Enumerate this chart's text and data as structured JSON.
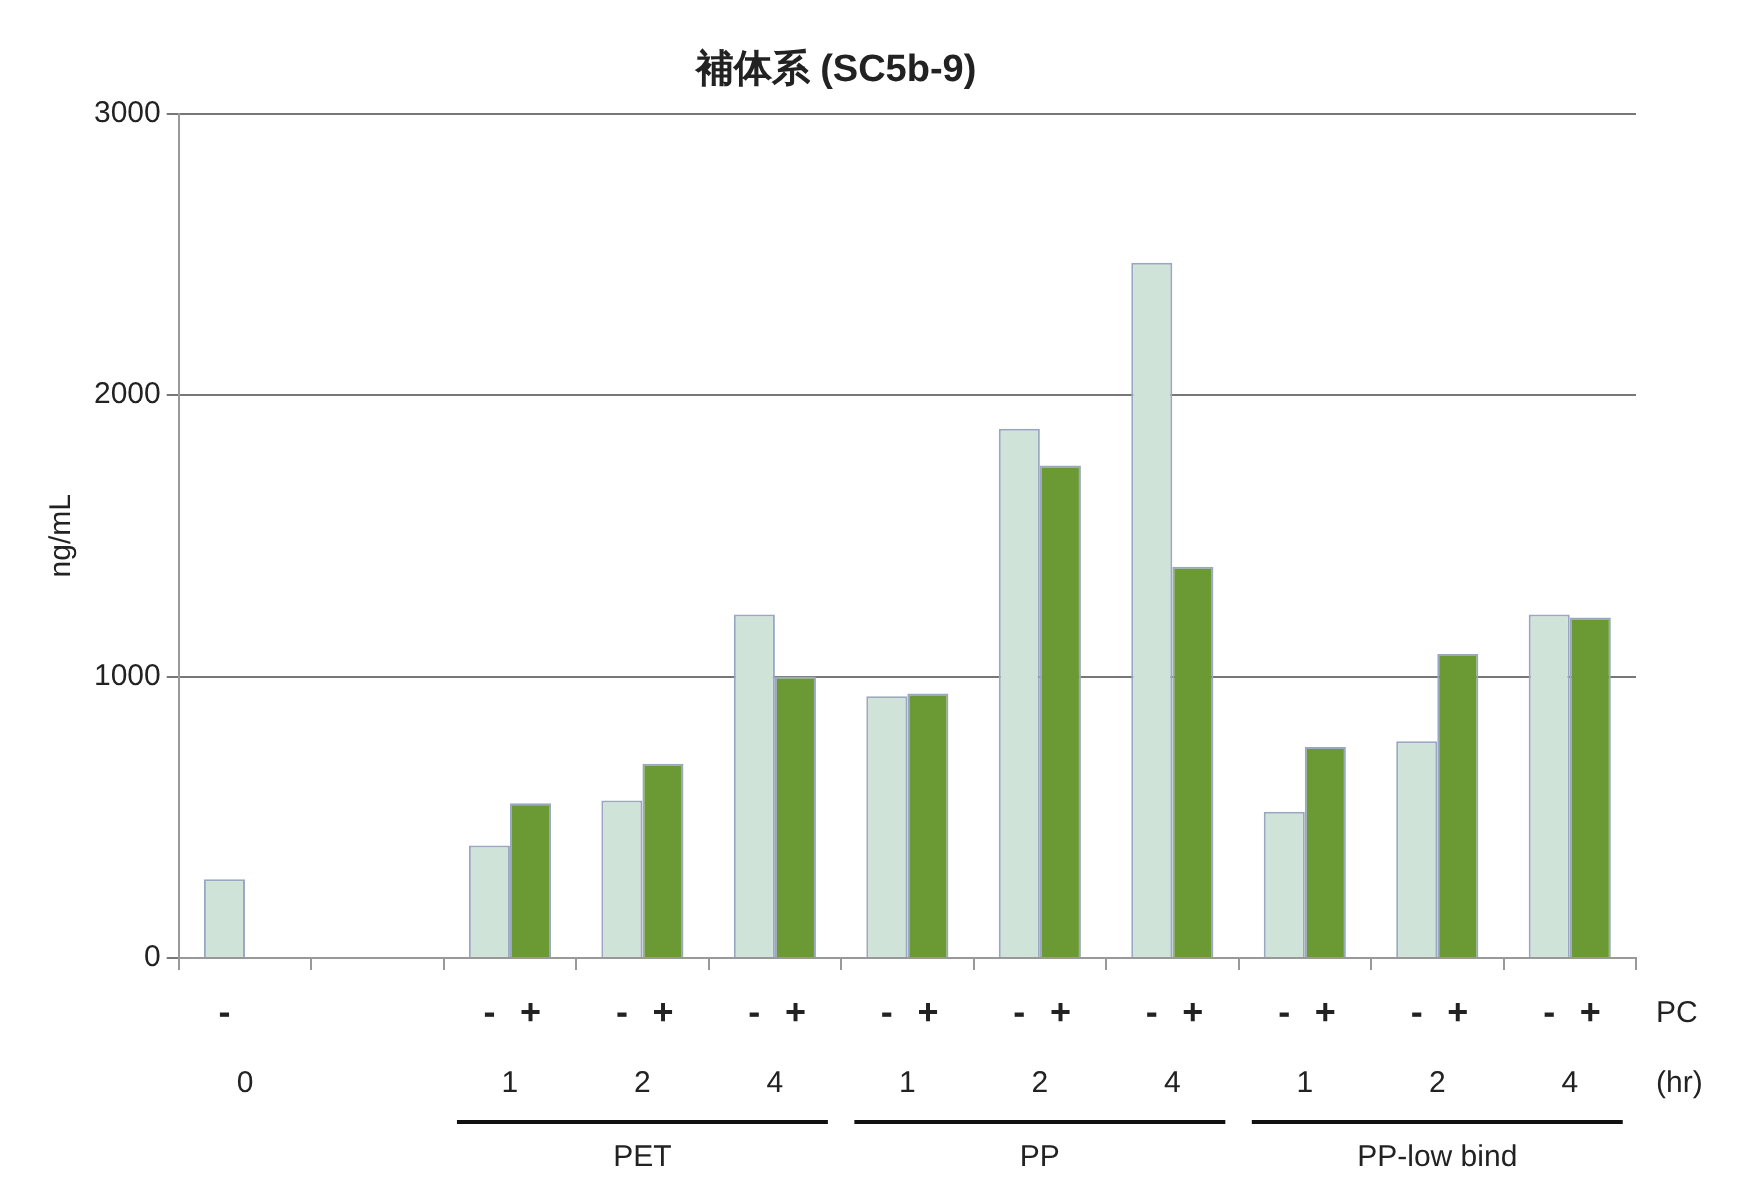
{
  "chart_data": {
    "type": "bar",
    "title": "補体系 (SC5b-9)",
    "ylabel": "ng/mL",
    "categories": [
      "0",
      null,
      "1",
      "2",
      "4",
      "1",
      "2",
      "4",
      "1",
      "2",
      "4"
    ],
    "series": [
      {
        "name": "-",
        "color": "#cfe3d8",
        "values": [
          280,
          null,
          400,
          560,
          1220,
          930,
          1880,
          2470,
          520,
          770,
          1220
        ]
      },
      {
        "name": "+",
        "color": "#6b9a34",
        "values": [
          null,
          null,
          550,
          690,
          1000,
          940,
          1750,
          1390,
          750,
          1080,
          1210
        ]
      }
    ],
    "ylim": [
      0,
      3000
    ],
    "yticks": [
      0,
      1000,
      2000,
      3000
    ],
    "grid": "y",
    "legend": false,
    "annotations": [
      "PC",
      "(hr)",
      "PET",
      "PP",
      "PP-low bind"
    ]
  }
}
